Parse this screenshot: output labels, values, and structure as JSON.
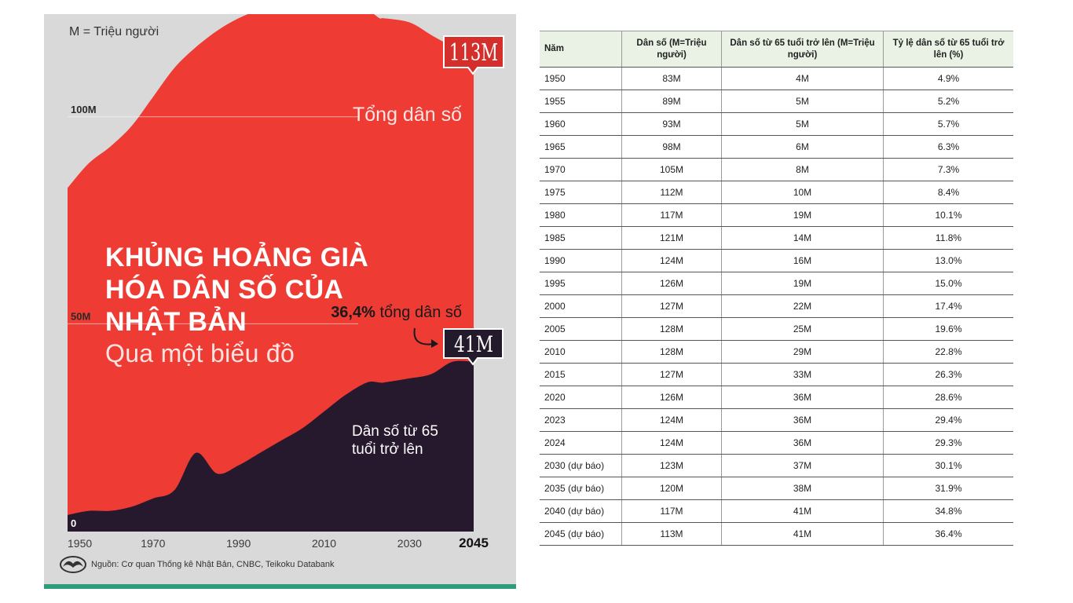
{
  "infographic": {
    "units_note": "M = Triệu người",
    "headline_line1": "KHỦNG HOẢNG GIÀ",
    "headline_line2": "HÓA DÂN SỐ CỦA",
    "headline_line3": "NHẬT BẢN",
    "headline_sub": "Qua một biểu đồ",
    "source": "Nguồn: Cơ quan Thống kê Nhật Bản, CNBC, Teikoku Databank",
    "colors": {
      "total": "#ee3b33",
      "elderly": "#26192e",
      "background": "#d9d9da",
      "accent_bar": "#2e9b7a",
      "badge": "#d42f2a"
    }
  },
  "chart_data": {
    "type": "area",
    "x_ticks": [
      "1950",
      "1970",
      "1990",
      "2010",
      "2030",
      "2045"
    ],
    "y_ticks": [
      "0",
      "50M",
      "100M"
    ],
    "ylim": [
      0,
      125
    ],
    "xlim": [
      1950,
      2045
    ],
    "x": [
      1950,
      1955,
      1960,
      1965,
      1970,
      1975,
      1980,
      1985,
      1990,
      1995,
      2000,
      2005,
      2010,
      2015,
      2020,
      2023,
      2024,
      2030,
      2035,
      2040,
      2045
    ],
    "series": [
      {
        "name": "Tổng dân số",
        "values": [
          83,
          89,
          93,
          98,
          105,
          112,
          117,
          121,
          124,
          126,
          127,
          128,
          128,
          127,
          126,
          124,
          124,
          123,
          120,
          117,
          113
        ]
      },
      {
        "name": "Dân số từ 65 tuổi trở lên",
        "values": [
          4,
          5,
          5,
          6,
          8,
          10,
          19,
          14,
          16,
          19,
          22,
          25,
          29,
          33,
          36,
          36,
          36,
          37,
          38,
          41,
          41
        ]
      }
    ],
    "annotations": {
      "total_badge": "113M",
      "elderly_badge": "41M",
      "elderly_share_value": "36,4%",
      "elderly_share_text": " tổng dân số",
      "total_label": "Tổng dân số",
      "elderly_label_1": "Dân số từ 65",
      "elderly_label_2": "tuổi trở lên"
    }
  },
  "table": {
    "headers": [
      "Năm",
      "Dân số (M=Triệu người)",
      "Dân số từ 65 tuổi trở lên (M=Triệu người)",
      "Tỷ lệ dân số từ 65 tuổi trở lên (%)"
    ],
    "rows": [
      [
        "1950",
        "83M",
        "4M",
        "4.9%"
      ],
      [
        "1955",
        "89M",
        "5M",
        "5.2%"
      ],
      [
        "1960",
        "93M",
        "5M",
        "5.7%"
      ],
      [
        "1965",
        "98M",
        "6M",
        "6.3%"
      ],
      [
        "1970",
        "105M",
        "8M",
        "7.3%"
      ],
      [
        "1975",
        "112M",
        "10M",
        "8.4%"
      ],
      [
        "1980",
        "117M",
        "19M",
        "10.1%"
      ],
      [
        "1985",
        "121M",
        "14M",
        "11.8%"
      ],
      [
        "1990",
        "124M",
        "16M",
        "13.0%"
      ],
      [
        "1995",
        "126M",
        "19M",
        "15.0%"
      ],
      [
        "2000",
        "127M",
        "22M",
        "17.4%"
      ],
      [
        "2005",
        "128M",
        "25M",
        "19.6%"
      ],
      [
        "2010",
        "128M",
        "29M",
        "22.8%"
      ],
      [
        "2015",
        "127M",
        "33M",
        "26.3%"
      ],
      [
        "2020",
        "126M",
        "36M",
        "28.6%"
      ],
      [
        "2023",
        "124M",
        "36M",
        "29.4%"
      ],
      [
        "2024",
        "124M",
        "36M",
        "29.3%"
      ],
      [
        "2030 (dự báo)",
        "123M",
        "37M",
        "30.1%"
      ],
      [
        "2035 (dự báo)",
        "120M",
        "38M",
        "31.9%"
      ],
      [
        "2040 (dự báo)",
        "117M",
        "41M",
        "34.8%"
      ],
      [
        "2045 (dự báo)",
        "113M",
        "41M",
        "36.4%"
      ]
    ]
  }
}
